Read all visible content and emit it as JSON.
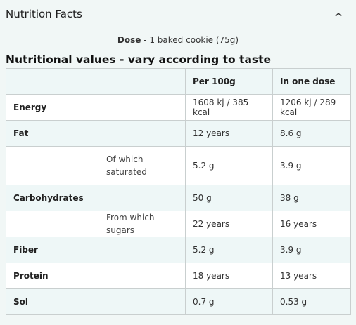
{
  "header": {
    "title": "Nutrition Facts",
    "toggle_icon": "chevron-up-icon"
  },
  "dose": {
    "label": "Dose",
    "value": " - 1 baked cookie (75g)"
  },
  "subtitle": "Nutritional values - vary according to taste",
  "table": {
    "headers": [
      "",
      "",
      "Per 100g",
      "In one dose"
    ],
    "rows": [
      {
        "label": "Energy",
        "sub": "",
        "per100": "1608 kj / 385 kcal",
        "dose": "1206 kj / 289 kcal"
      },
      {
        "label": "Fat",
        "sub": "",
        "per100": "12 years",
        "dose": "8.6 g"
      },
      {
        "label": "",
        "sub": "Of which saturated",
        "per100": "5.2 g",
        "dose": "3.9 g"
      },
      {
        "label": "Carbohydrates",
        "sub": "",
        "per100": "50 g",
        "dose": "38 g"
      },
      {
        "label": "",
        "sub": "From which sugars",
        "per100": "22 years",
        "dose": "16 years"
      },
      {
        "label": "Fiber",
        "sub": "",
        "per100": "5.2 g",
        "dose": "3.9 g"
      },
      {
        "label": "Protein",
        "sub": "",
        "per100": "18 years",
        "dose": "13 years"
      },
      {
        "label": "Sol",
        "sub": "",
        "per100": "0.7 g",
        "dose": "0.53 g"
      }
    ]
  }
}
